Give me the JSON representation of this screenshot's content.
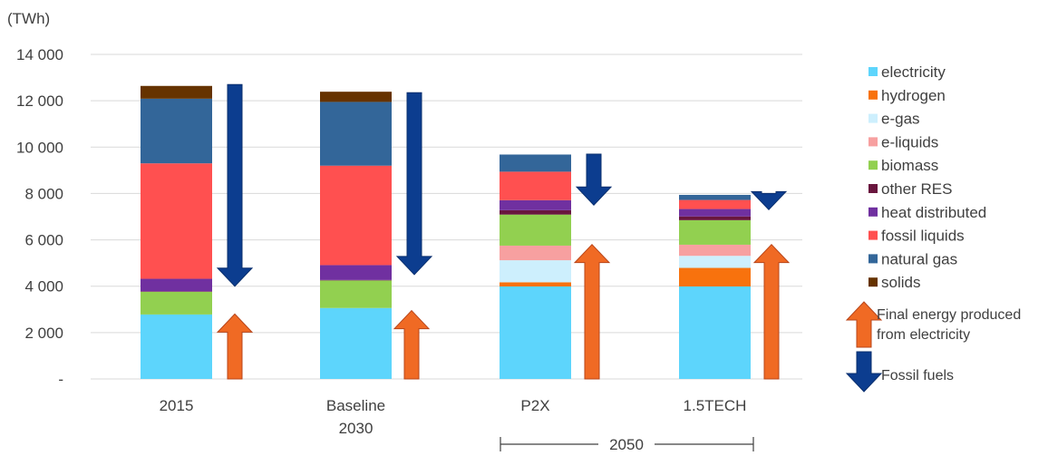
{
  "chart_data": {
    "type": "bar",
    "stacked": true,
    "unit_label": "(TWh)",
    "ylim": [
      0,
      14000
    ],
    "yticks": [
      {
        "value": 0,
        "label": "-"
      },
      {
        "value": 2000,
        "label": "2 000"
      },
      {
        "value": 4000,
        "label": "4 000"
      },
      {
        "value": 6000,
        "label": "6 000"
      },
      {
        "value": 8000,
        "label": "8 000"
      },
      {
        "value": 10000,
        "label": "10 000"
      },
      {
        "value": 12000,
        "label": "12 000"
      },
      {
        "value": 14000,
        "label": "14 000"
      }
    ],
    "grid": true,
    "legend_position": "right",
    "categories": [
      "2015",
      "Baseline\n2030",
      "P2X",
      "1.5TECH"
    ],
    "group_label": "2050",
    "series": [
      {
        "name": "electricity",
        "color": "#5DD5FC",
        "values": [
          2780,
          3060,
          3990,
          3990
        ]
      },
      {
        "name": "hydrogen",
        "color": "#F8720D",
        "values": [
          0,
          0,
          180,
          800
        ]
      },
      {
        "name": "e-gas",
        "color": "#CDEFFD",
        "values": [
          0,
          0,
          950,
          520
        ]
      },
      {
        "name": "e-liquids",
        "color": "#F7A0A0",
        "values": [
          0,
          0,
          630,
          480
        ]
      },
      {
        "name": "biomass",
        "color": "#92D050",
        "values": [
          980,
          1190,
          1340,
          1060
        ]
      },
      {
        "name": "other RES",
        "color": "#69163E",
        "values": [
          20,
          20,
          190,
          160
        ]
      },
      {
        "name": "heat distributed",
        "color": "#7030A0",
        "values": [
          540,
          640,
          430,
          320
        ]
      },
      {
        "name": "fossil liquids",
        "color": "#FF5050",
        "values": [
          4980,
          4290,
          1230,
          390
        ]
      },
      {
        "name": "natural gas",
        "color": "#336699",
        "values": [
          2790,
          2750,
          740,
          220
        ]
      },
      {
        "name": "solids",
        "color": "#663300",
        "values": [
          550,
          440,
          0,
          0
        ]
      }
    ],
    "annotations": {
      "fossil_arrow_color": "#0C3D8F",
      "electricity_arrow_color": "#F06A24",
      "fossil_fuels_down": [
        {
          "category": "2015",
          "from": 12700,
          "to": 4000
        },
        {
          "category": "Baseline\n2030",
          "from": 12350,
          "to": 4500
        },
        {
          "category": "P2X",
          "from": 9700,
          "to": 7500
        },
        {
          "category": "1.5TECH",
          "from": 8000,
          "to": 7300
        }
      ],
      "final_energy_from_electricity_up": [
        {
          "category": "2015",
          "from": 0,
          "to": 2800
        },
        {
          "category": "Baseline\n2030",
          "from": 0,
          "to": 2950
        },
        {
          "category": "P2X",
          "from": 0,
          "to": 5800
        },
        {
          "category": "1.5TECH",
          "from": 0,
          "to": 5800
        }
      ],
      "arrow_legend": [
        {
          "kind": "up",
          "text": "Final energy produced\nfrom electricity"
        },
        {
          "kind": "down",
          "text": "Fossil fuels"
        }
      ]
    }
  }
}
